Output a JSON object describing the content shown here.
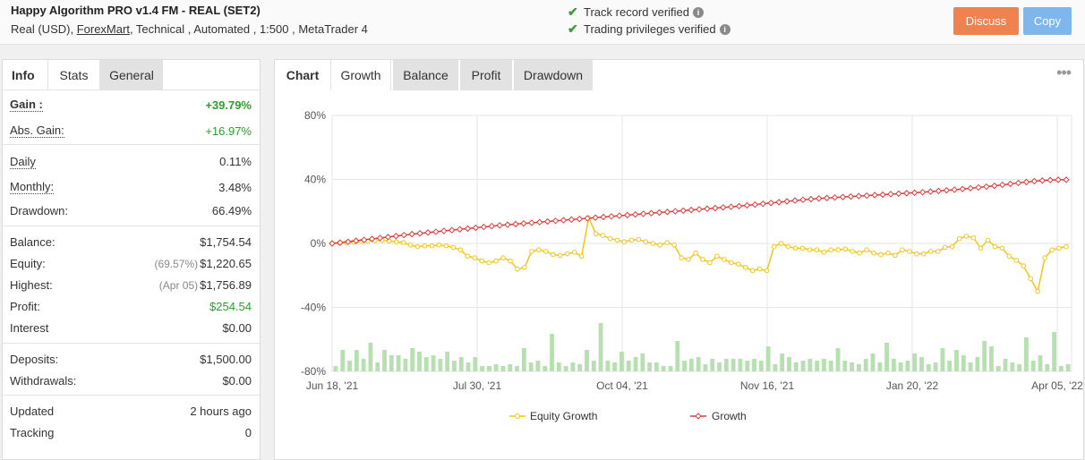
{
  "header": {
    "title": "Happy Algorithm PRO v1.4 FM - REAL (SET2)",
    "sub_prefix": "Real (USD),",
    "broker": "ForexMart",
    "sub_suffix": ", Technical , Automated , 1:500 , MetaTrader 4",
    "verify_track": "Track record verified",
    "verify_trading": "Trading privileges verified",
    "discuss_label": "Discuss",
    "copy_label": "Copy"
  },
  "left_tabs": {
    "info": "Info",
    "stats": "Stats",
    "general": "General"
  },
  "stats": {
    "gain_label": "Gain :",
    "gain_value": "+39.79%",
    "abs_gain_label": "Abs. Gain:",
    "abs_gain_value": "+16.97%",
    "daily_label": "Daily",
    "daily_value": "0.11%",
    "monthly_label": "Monthly:",
    "monthly_value": "3.48%",
    "drawdown_label": "Drawdown:",
    "drawdown_value": "66.49%",
    "balance_label": "Balance:",
    "balance_value": "$1,754.54",
    "equity_label": "Equity:",
    "equity_pct": "(69.57%)",
    "equity_value": "$1,220.65",
    "highest_label": "Highest:",
    "highest_date": "(Apr 05)",
    "highest_value": "$1,756.89",
    "profit_label": "Profit:",
    "profit_value": "$254.54",
    "interest_label": "Interest",
    "interest_value": "$0.00",
    "deposits_label": "Deposits:",
    "deposits_value": "$1,500.00",
    "withdrawals_label": "Withdrawals:",
    "withdrawals_value": "$0.00",
    "updated_label": "Updated",
    "updated_value": "2 hours ago",
    "tracking_label": "Tracking",
    "tracking_value": "0"
  },
  "chart_tabs": {
    "chart": "Chart",
    "growth": "Growth",
    "balance": "Balance",
    "profit": "Profit",
    "drawdown": "Drawdown"
  },
  "colors": {
    "growth": "#e03c3c",
    "equity": "#f3c614",
    "bars": "#b7e0b1",
    "buy_button": "#f0824f",
    "copy_button": "#7fb6ec"
  },
  "chart_data": {
    "type": "line",
    "ylim": [
      -80,
      80
    ],
    "yticks": [
      "80%",
      "40%",
      "0%",
      "-40%",
      "-80%"
    ],
    "xticks": [
      "Jun 18, '21",
      "Jul 30, '21",
      "Oct 04, '21",
      "Nov 16, '21",
      "Jan 20, '22",
      "Apr 05, '22"
    ],
    "legend": [
      "Equity Growth",
      "Growth"
    ],
    "legend_position": "bottom",
    "grid": true,
    "series": [
      {
        "name": "Growth",
        "values": [
          0.0,
          0.5,
          1.0,
          1.6,
          2.2,
          2.8,
          3.4,
          4.0,
          4.6,
          5.2,
          5.8,
          6.3,
          6.8,
          7.3,
          7.8,
          8.3,
          8.8,
          9.3,
          9.8,
          10.3,
          10.8,
          11.3,
          11.7,
          12.1,
          12.5,
          12.9,
          13.3,
          13.7,
          14.1,
          14.5,
          14.9,
          15.3,
          15.7,
          16.1,
          16.5,
          16.9,
          17.3,
          17.7,
          18.1,
          18.5,
          18.9,
          19.3,
          19.7,
          20.1,
          20.5,
          20.9,
          21.3,
          21.7,
          22.1,
          22.5,
          22.9,
          23.3,
          23.8,
          24.3,
          24.8,
          25.3,
          25.8,
          26.3,
          26.8,
          27.3,
          27.7,
          28.1,
          28.4,
          28.7,
          29.0,
          29.3,
          29.6,
          29.9,
          30.2,
          30.5,
          30.8,
          31.1,
          31.4,
          31.7,
          32.0,
          32.4,
          32.8,
          33.2,
          33.6,
          34.0,
          34.5,
          35.0,
          35.5,
          36.0,
          36.6,
          37.2,
          37.8,
          38.4,
          38.9,
          39.3,
          39.6,
          39.8,
          39.8
        ],
        "note": ""
      },
      {
        "name": "Equity Growth",
        "values": [
          0.0,
          0.3,
          0.6,
          0.9,
          1.2,
          1.5,
          1.8,
          2.0,
          1.5,
          1.0,
          0.5,
          -1.0,
          -2.0,
          -1.5,
          -1.5,
          -1.0,
          -1.5,
          -2.5,
          -4.0,
          -8.0,
          -9.0,
          -11.0,
          -12.0,
          -11.0,
          -9.0,
          -11.0,
          -16.0,
          -15.0,
          -5.0,
          -4.0,
          -5.0,
          -7.0,
          -7.5,
          -6.5,
          -5.5,
          -8.0,
          16.0,
          6.0,
          5.0,
          3.0,
          2.0,
          1.0,
          2.0,
          2.5,
          1.0,
          0.0,
          -1.0,
          0.5,
          -1.0,
          -9.0,
          -10.0,
          -6.0,
          -10.0,
          -12.0,
          -8.0,
          -10.0,
          -12.0,
          -13.0,
          -15.0,
          -17.0,
          -16.0,
          -17.0,
          -2.0,
          0.0,
          -2.0,
          -3.0,
          -3.0,
          -4.0,
          -4.0,
          -5.5,
          -4.0,
          -4.0,
          -3.5,
          -5.0,
          -6.0,
          -4.0,
          -6.0,
          -7.0,
          -6.0,
          -7.5,
          -4.0,
          -5.0,
          -6.5,
          -6.5,
          -5.0,
          -5.0,
          -2.5,
          -2.0,
          3.0,
          4.5,
          3.5,
          -3.0,
          2.0,
          -2.0,
          -3.0,
          -8.0,
          -10.5,
          -14.0,
          -22.0,
          -30.0,
          -9.0,
          -4.0,
          -3.0,
          -2.0
        ],
        "note": ""
      }
    ],
    "bar_values": [
      3,
      12,
      6,
      12,
      7,
      16,
      5,
      12,
      9,
      9,
      7,
      13,
      11,
      8,
      9,
      7,
      11,
      6,
      8,
      5,
      8,
      3,
      3,
      4,
      3,
      4,
      3,
      13,
      5,
      6,
      3,
      21,
      5,
      3,
      5,
      4,
      12,
      6,
      27,
      6,
      5,
      11,
      6,
      8,
      10,
      5,
      5,
      3,
      3,
      17,
      6,
      7,
      8,
      4,
      7,
      5,
      7,
      7,
      7,
      6,
      7,
      6,
      14,
      4,
      10,
      8,
      5,
      6,
      7,
      6,
      7,
      6,
      13,
      6,
      5,
      4,
      7,
      10,
      5,
      16,
      7,
      5,
      6,
      10,
      8,
      4,
      5,
      13,
      6,
      12,
      9,
      5,
      8,
      17,
      14,
      3,
      7,
      5,
      4,
      19,
      6,
      9,
      4,
      22,
      3,
      4
    ]
  }
}
